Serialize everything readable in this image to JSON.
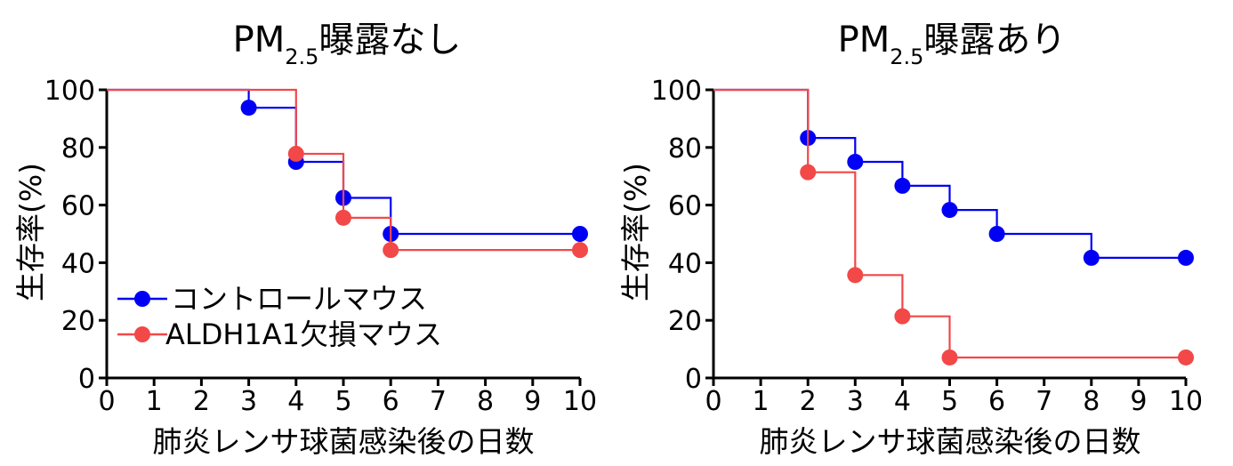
{
  "colors": {
    "control": "#0000f5",
    "knockout": "#f24848",
    "axis": "#000000"
  },
  "chart_data": [
    {
      "type": "line",
      "subtype": "kaplan-meier-step",
      "title": {
        "main": "PM",
        "subscript": "2.5",
        "suffix": "曝露なし"
      },
      "xlabel": "肺炎レンサ球菌感染後の日数",
      "ylabel": "生存率(%)",
      "xlim": [
        0,
        10
      ],
      "ylim": [
        0,
        100
      ],
      "xticks": [
        0,
        1,
        2,
        3,
        4,
        5,
        6,
        7,
        8,
        9,
        10
      ],
      "yticks": [
        0,
        20,
        40,
        60,
        80,
        100
      ],
      "xtick_labels": [
        "0",
        "1",
        "2",
        "3",
        "4",
        "5",
        "6",
        "7",
        "8",
        "9",
        "10"
      ],
      "ytick_labels": [
        "0",
        "20",
        "40",
        "60",
        "80",
        "100"
      ],
      "legend": {
        "position": "bottom-left"
      },
      "series": [
        {
          "name": "コントロールマウス",
          "color_key": "control",
          "x": [
            0,
            3,
            4,
            5,
            6,
            10
          ],
          "y": [
            100,
            93.8,
            75,
            62.5,
            50,
            50
          ],
          "markers": [
            [
              3,
              93.8
            ],
            [
              4,
              75
            ],
            [
              5,
              62.5
            ],
            [
              6,
              50
            ],
            [
              10,
              50
            ]
          ]
        },
        {
          "name": "ALDH1A1欠損マウス",
          "color_key": "knockout",
          "x": [
            0,
            4,
            5,
            6,
            10
          ],
          "y": [
            100,
            77.8,
            55.6,
            44.4,
            44.4
          ],
          "markers": [
            [
              4,
              77.8
            ],
            [
              5,
              55.6
            ],
            [
              6,
              44.4
            ],
            [
              10,
              44.4
            ]
          ]
        }
      ]
    },
    {
      "type": "line",
      "subtype": "kaplan-meier-step",
      "title": {
        "main": "PM",
        "subscript": "2.5",
        "suffix": "曝露あり"
      },
      "xlabel": "肺炎レンサ球菌感染後の日数",
      "ylabel": "生存率(%)",
      "xlim": [
        0,
        10
      ],
      "ylim": [
        0,
        100
      ],
      "xticks": [
        0,
        1,
        2,
        3,
        4,
        5,
        6,
        7,
        8,
        9,
        10
      ],
      "yticks": [
        0,
        20,
        40,
        60,
        80,
        100
      ],
      "xtick_labels": [
        "0",
        "1",
        "2",
        "3",
        "4",
        "5",
        "6",
        "7",
        "8",
        "9",
        "10"
      ],
      "ytick_labels": [
        "0",
        "20",
        "40",
        "60",
        "80",
        "100"
      ],
      "series": [
        {
          "color_key": "control",
          "x": [
            0,
            2,
            3,
            4,
            5,
            6,
            8,
            10
          ],
          "y": [
            100,
            83.3,
            75,
            66.7,
            58.3,
            50,
            41.7,
            41.7
          ],
          "markers": [
            [
              2,
              83.3
            ],
            [
              3,
              75
            ],
            [
              4,
              66.7
            ],
            [
              5,
              58.3
            ],
            [
              6,
              50
            ],
            [
              8,
              41.7
            ],
            [
              10,
              41.7
            ]
          ]
        },
        {
          "color_key": "knockout",
          "x": [
            0,
            2,
            3,
            4,
            5,
            10
          ],
          "y": [
            100,
            71.4,
            35.7,
            21.4,
            7.1,
            7.1
          ],
          "markers": [
            [
              2,
              71.4
            ],
            [
              3,
              35.7
            ],
            [
              4,
              21.4
            ],
            [
              5,
              7.1
            ],
            [
              10,
              7.1
            ]
          ]
        }
      ]
    }
  ]
}
